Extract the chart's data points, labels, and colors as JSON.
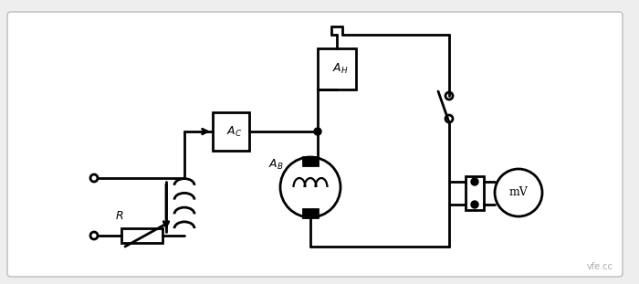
{
  "bg_color": "#f0f0f0",
  "line_color": "black",
  "lw": 2.0,
  "fig_width": 7.0,
  "fig_height": 3.11,
  "watermark": "vfe.cc"
}
